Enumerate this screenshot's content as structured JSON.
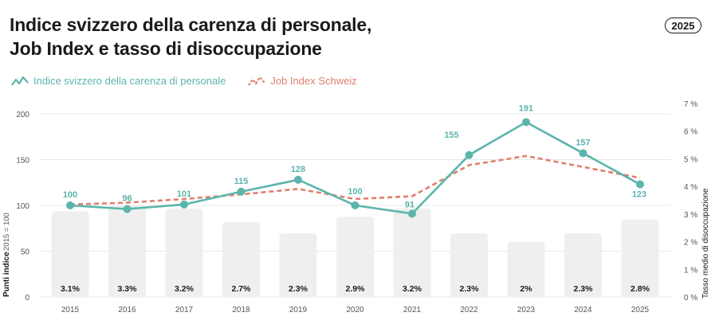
{
  "title_lines": [
    "Indice svizzero della carenza di personale,",
    "Job Index e tasso di disoccupazione"
  ],
  "badge": "2025",
  "colors": {
    "teal": "#5bb5ac",
    "salmon": "#e07f6e",
    "bar": "#efefef",
    "grid": "#e8e8e8",
    "text": "#1a1a1a",
    "axis": "#555555"
  },
  "chart_data": {
    "type": "bar+line",
    "categories": [
      "2015",
      "2016",
      "2017",
      "2018",
      "2019",
      "2020",
      "2021",
      "2022",
      "2023",
      "2024",
      "2025"
    ],
    "series": [
      {
        "name": "Indice svizzero della carenza di personale",
        "type": "line",
        "axis": "left",
        "values": [
          100,
          96,
          101,
          115,
          128,
          100,
          91,
          155,
          191,
          157,
          123
        ],
        "labels": [
          "100",
          "96",
          "101",
          "115",
          "128",
          "100",
          "91",
          "155",
          "191",
          "157",
          "123"
        ]
      },
      {
        "name": "Job Index Schweiz",
        "type": "line-dashed",
        "axis": "left",
        "values": [
          101,
          103,
          107,
          112,
          118,
          107,
          110,
          144,
          154,
          142,
          130
        ]
      },
      {
        "type": "bar",
        "axis": "right",
        "values": [
          3.1,
          3.3,
          3.2,
          2.7,
          2.3,
          2.9,
          3.2,
          2.3,
          2.0,
          2.3,
          2.8
        ],
        "labels": [
          "3.1%",
          "3.3%",
          "3.2%",
          "2.7%",
          "2.3%",
          "2.9%",
          "3.2%",
          "2.3%",
          "2%",
          "2.3%",
          "2.8%"
        ]
      }
    ],
    "y_left": {
      "label": "Punti indice",
      "sublabel": "2015 = 100",
      "ticks": [
        "0",
        "50",
        "100",
        "150",
        "200"
      ],
      "range": [
        0,
        200
      ]
    },
    "y_right": {
      "label": "Tasso medio di disoccupazione",
      "ticks": [
        "0 %",
        "1 %",
        "2 %",
        "3 %",
        "4 %",
        "5 %",
        "6 %",
        "7 %"
      ],
      "range": [
        0,
        7
      ]
    },
    "grid": true,
    "legend_position": "top-left"
  }
}
